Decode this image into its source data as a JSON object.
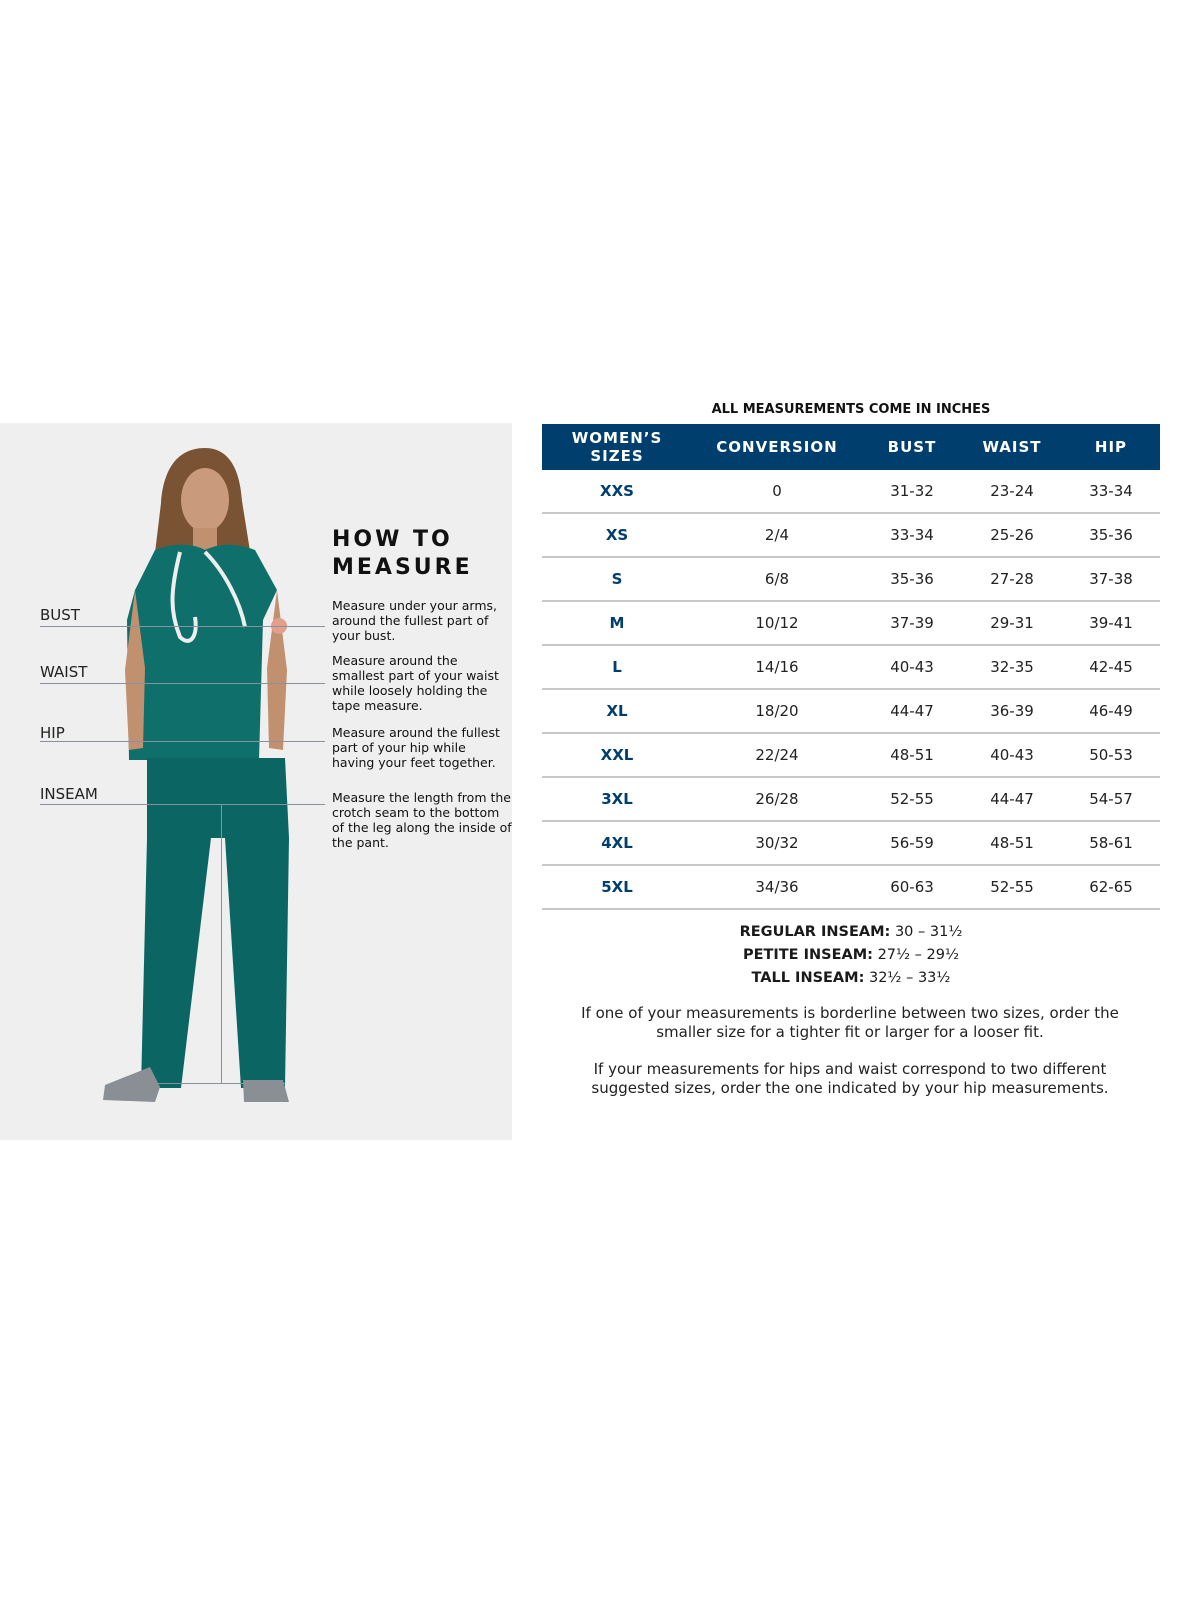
{
  "how_to_measure": {
    "title_line1": "HOW TO",
    "title_line2": "MEASURE",
    "measurements": [
      {
        "label": "BUST",
        "description": "Measure under your arms, around the fullest part of your bust."
      },
      {
        "label": "WAIST",
        "description": "Measure around the smallest part of your waist while loosely holding the tape measure."
      },
      {
        "label": "HIP",
        "description": "Measure around the fullest part of your hip while having your feet together."
      },
      {
        "label": "INSEAM",
        "description": "Measure the length from the crotch seam to the bottom of the leg along the inside of the pant."
      }
    ]
  },
  "size_chart": {
    "note": "ALL MEASUREMENTS COME IN INCHES",
    "header_color": "#003e6d",
    "columns": [
      "WOMEN’S SIZES",
      "CONVERSION",
      "BUST",
      "WAIST",
      "HIP"
    ],
    "rows": [
      [
        "XXS",
        "0",
        "31-32",
        "23-24",
        "33-34"
      ],
      [
        "XS",
        "2/4",
        "33-34",
        "25-26",
        "35-36"
      ],
      [
        "S",
        "6/8",
        "35-36",
        "27-28",
        "37-38"
      ],
      [
        "M",
        "10/12",
        "37-39",
        "29-31",
        "39-41"
      ],
      [
        "L",
        "14/16",
        "40-43",
        "32-35",
        "42-45"
      ],
      [
        "XL",
        "18/20",
        "44-47",
        "36-39",
        "46-49"
      ],
      [
        "XXL",
        "22/24",
        "48-51",
        "40-43",
        "50-53"
      ],
      [
        "3XL",
        "26/28",
        "52-55",
        "44-47",
        "54-57"
      ],
      [
        "4XL",
        "30/32",
        "56-59",
        "48-51",
        "58-61"
      ],
      [
        "5XL",
        "34/36",
        "60-63",
        "52-55",
        "62-65"
      ]
    ]
  },
  "inseam": [
    {
      "label": "REGULAR INSEAM:",
      "value": "30  – 31½"
    },
    {
      "label": "PETITE INSEAM:",
      "value": "27½ – 29½"
    },
    {
      "label": "TALL INSEAM:",
      "value": "32½ – 33½"
    }
  ],
  "tips": [
    "If one of your measurements is borderline between two sizes, order the smaller size for a tighter fit or larger for a looser fit.",
    "If your measurements for hips and waist correspond to two different suggested sizes, order the one indicated by your hip measurements."
  ]
}
